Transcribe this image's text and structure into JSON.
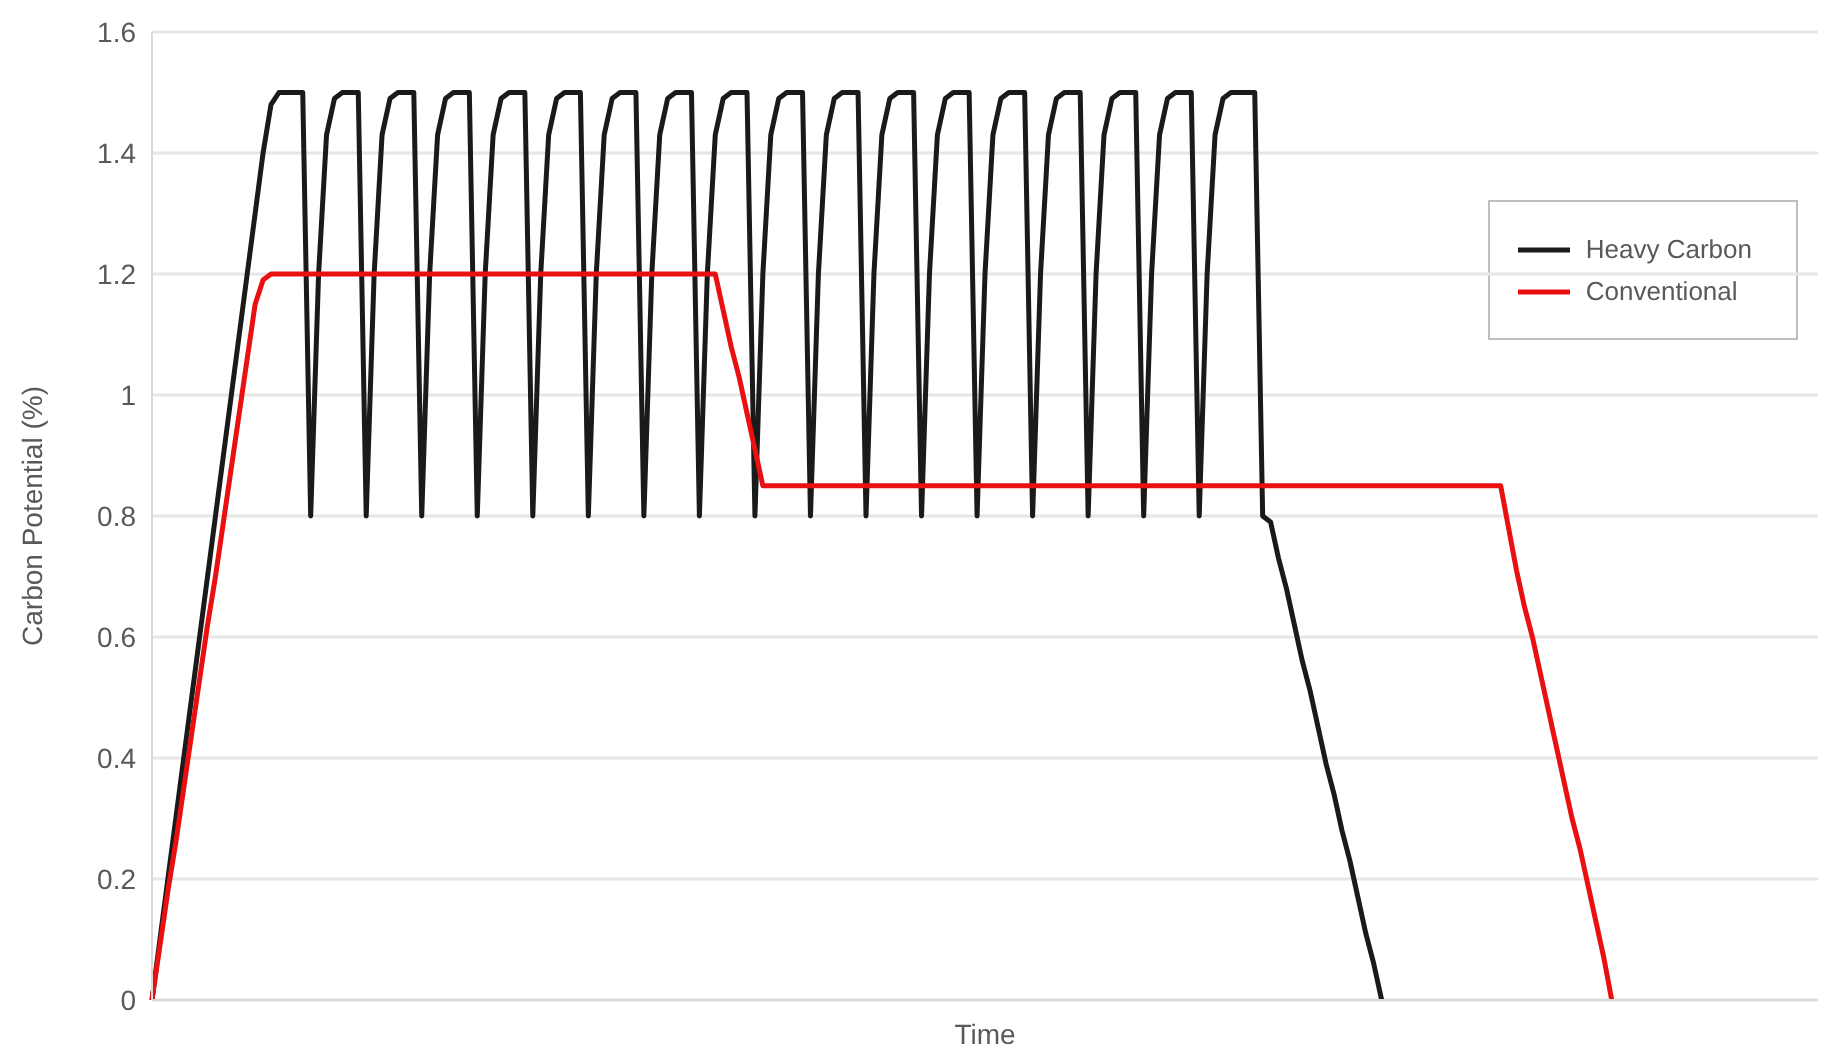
{
  "chart_data": {
    "type": "line",
    "xlabel": "Time",
    "ylabel": "Carbon Potential (%)",
    "categories": [
      null,
      null,
      null,
      null,
      null,
      null,
      null,
      null,
      null,
      null,
      null,
      null,
      null,
      null,
      null,
      null,
      null,
      null,
      null,
      null,
      null,
      null,
      null,
      null,
      null,
      null,
      null,
      null,
      null,
      null,
      null,
      null,
      null,
      null,
      null,
      null,
      null,
      null,
      null,
      null,
      null,
      null,
      null,
      null,
      null,
      null,
      null,
      null,
      null,
      null,
      null,
      null,
      null,
      null,
      null,
      null,
      null,
      null,
      null,
      null,
      null,
      null,
      null,
      null,
      null,
      null,
      null,
      null,
      null,
      null,
      null,
      null,
      null,
      null,
      null,
      null,
      null,
      null,
      null,
      null,
      null,
      null,
      null,
      null,
      null,
      null,
      null,
      null,
      null,
      null,
      null,
      null,
      null,
      null,
      null,
      null,
      null,
      null,
      null,
      null,
      null,
      null,
      null,
      null,
      null,
      null,
      null,
      null,
      null,
      null,
      null,
      null,
      null,
      null,
      null,
      null,
      null,
      null,
      null,
      null,
      null,
      null,
      null,
      null,
      null,
      null,
      null,
      null,
      null,
      null,
      null,
      null,
      null,
      null,
      null,
      null,
      null,
      null,
      null,
      null,
      null,
      null,
      null,
      null,
      null,
      null,
      null,
      null,
      null,
      null,
      null,
      null,
      null,
      null,
      null,
      null,
      null,
      null,
      null,
      null,
      null,
      null,
      null,
      null,
      null,
      null,
      null,
      null,
      null,
      null,
      null,
      null,
      null,
      null,
      null,
      null,
      null,
      null,
      null,
      null,
      null,
      null,
      null,
      null,
      null,
      null,
      null,
      null,
      null,
      null,
      null,
      null,
      null,
      null,
      null,
      null,
      null,
      null,
      null,
      null,
      null,
      null,
      null,
      null,
      null,
      null,
      null,
      null,
      null,
      null,
      null
    ],
    "series": [
      {
        "name": "Heavy Carbon",
        "color": "#1a1a1a",
        "values": [
          0,
          0.1,
          0.2,
          0.3,
          0.4,
          0.5,
          0.6,
          0.7,
          0.8,
          0.9,
          1,
          1.1,
          1.2,
          1.3,
          1.4,
          1.48,
          1.5,
          1.5,
          1.5,
          1.5,
          0.8,
          1.2,
          1.43,
          1.49,
          1.5,
          1.5,
          1.5,
          0.8,
          1.2,
          1.43,
          1.49,
          1.5,
          1.5,
          1.5,
          0.8,
          1.2,
          1.43,
          1.49,
          1.5,
          1.5,
          1.5,
          0.8,
          1.2,
          1.43,
          1.49,
          1.5,
          1.5,
          1.5,
          0.8,
          1.2,
          1.43,
          1.49,
          1.5,
          1.5,
          1.5,
          0.8,
          1.2,
          1.43,
          1.49,
          1.5,
          1.5,
          1.5,
          0.8,
          1.2,
          1.43,
          1.49,
          1.5,
          1.5,
          1.5,
          0.8,
          1.2,
          1.43,
          1.49,
          1.5,
          1.5,
          1.5,
          0.8,
          1.2,
          1.43,
          1.49,
          1.5,
          1.5,
          1.5,
          0.8,
          1.2,
          1.43,
          1.49,
          1.5,
          1.5,
          1.5,
          0.8,
          1.2,
          1.43,
          1.49,
          1.5,
          1.5,
          1.5,
          0.8,
          1.2,
          1.43,
          1.49,
          1.5,
          1.5,
          1.5,
          0.8,
          1.2,
          1.43,
          1.49,
          1.5,
          1.5,
          1.5,
          0.8,
          1.2,
          1.43,
          1.49,
          1.5,
          1.5,
          1.5,
          0.8,
          1.2,
          1.43,
          1.49,
          1.5,
          1.5,
          1.5,
          0.8,
          1.2,
          1.43,
          1.49,
          1.5,
          1.5,
          1.5,
          0.8,
          1.2,
          1.43,
          1.49,
          1.5,
          1.5,
          1.5,
          1.5,
          0.8,
          0.79,
          0.73,
          0.68,
          0.62,
          0.56,
          0.51,
          0.45,
          0.39,
          0.34,
          0.28,
          0.23,
          0.17,
          0.11,
          0.06,
          0,
          null,
          null,
          null,
          null,
          null,
          null,
          null,
          null,
          null,
          null,
          null,
          null,
          null,
          null,
          null,
          null,
          null,
          null,
          null,
          null,
          null,
          null,
          null,
          null,
          null,
          null,
          null,
          null,
          null,
          null,
          null,
          null,
          null,
          null,
          null,
          null,
          null,
          null,
          null,
          null,
          null,
          null,
          null,
          null,
          null,
          null,
          null,
          null,
          null,
          null,
          null,
          null,
          null,
          null,
          null
        ]
      },
      {
        "name": "Conventional",
        "color": "#e81010",
        "values": [
          0,
          0.09,
          0.18,
          0.26,
          0.35,
          0.44,
          0.53,
          0.62,
          0.7,
          0.79,
          0.88,
          0.97,
          1.06,
          1.15,
          1.19,
          1.2,
          1.2,
          1.2,
          1.2,
          1.2,
          1.2,
          1.2,
          1.2,
          1.2,
          1.2,
          1.2,
          1.2,
          1.2,
          1.2,
          1.2,
          1.2,
          1.2,
          1.2,
          1.2,
          1.2,
          1.2,
          1.2,
          1.2,
          1.2,
          1.2,
          1.2,
          1.2,
          1.2,
          1.2,
          1.2,
          1.2,
          1.2,
          1.2,
          1.2,
          1.2,
          1.2,
          1.2,
          1.2,
          1.2,
          1.2,
          1.2,
          1.2,
          1.2,
          1.2,
          1.2,
          1.2,
          1.2,
          1.2,
          1.2,
          1.2,
          1.2,
          1.2,
          1.2,
          1.2,
          1.2,
          1.2,
          1.2,
          1.14,
          1.08,
          1.03,
          0.97,
          0.91,
          0.85,
          0.85,
          0.85,
          0.85,
          0.85,
          0.85,
          0.85,
          0.85,
          0.85,
          0.85,
          0.85,
          0.85,
          0.85,
          0.85,
          0.85,
          0.85,
          0.85,
          0.85,
          0.85,
          0.85,
          0.85,
          0.85,
          0.85,
          0.85,
          0.85,
          0.85,
          0.85,
          0.85,
          0.85,
          0.85,
          0.85,
          0.85,
          0.85,
          0.85,
          0.85,
          0.85,
          0.85,
          0.85,
          0.85,
          0.85,
          0.85,
          0.85,
          0.85,
          0.85,
          0.85,
          0.85,
          0.85,
          0.85,
          0.85,
          0.85,
          0.85,
          0.85,
          0.85,
          0.85,
          0.85,
          0.85,
          0.85,
          0.85,
          0.85,
          0.85,
          0.85,
          0.85,
          0.85,
          0.85,
          0.85,
          0.85,
          0.85,
          0.85,
          0.85,
          0.85,
          0.85,
          0.85,
          0.85,
          0.85,
          0.85,
          0.85,
          0.85,
          0.85,
          0.85,
          0.85,
          0.85,
          0.85,
          0.85,
          0.85,
          0.85,
          0.85,
          0.85,
          0.85,
          0.85,
          0.85,
          0.85,
          0.85,
          0.85,
          0.85,
          0.78,
          0.71,
          0.65,
          0.6,
          0.54,
          0.48,
          0.42,
          0.36,
          0.3,
          0.25,
          0.19,
          0.13,
          0.07,
          0,
          null,
          null,
          null,
          null,
          null,
          null,
          null,
          null,
          null,
          null,
          null,
          null,
          null,
          null,
          null,
          null,
          null,
          null,
          null,
          null,
          null,
          null,
          null,
          null,
          null,
          null
        ]
      }
    ],
    "ylim": [
      0,
      1.6
    ],
    "yticks": [
      0,
      0.2,
      0.4,
      0.6,
      0.8,
      1,
      1.2,
      1.4,
      1.6
    ],
    "grid": "y",
    "legend": "top right",
    "tick_labels": "y",
    "marker": "none",
    "line_style": "solid"
  }
}
